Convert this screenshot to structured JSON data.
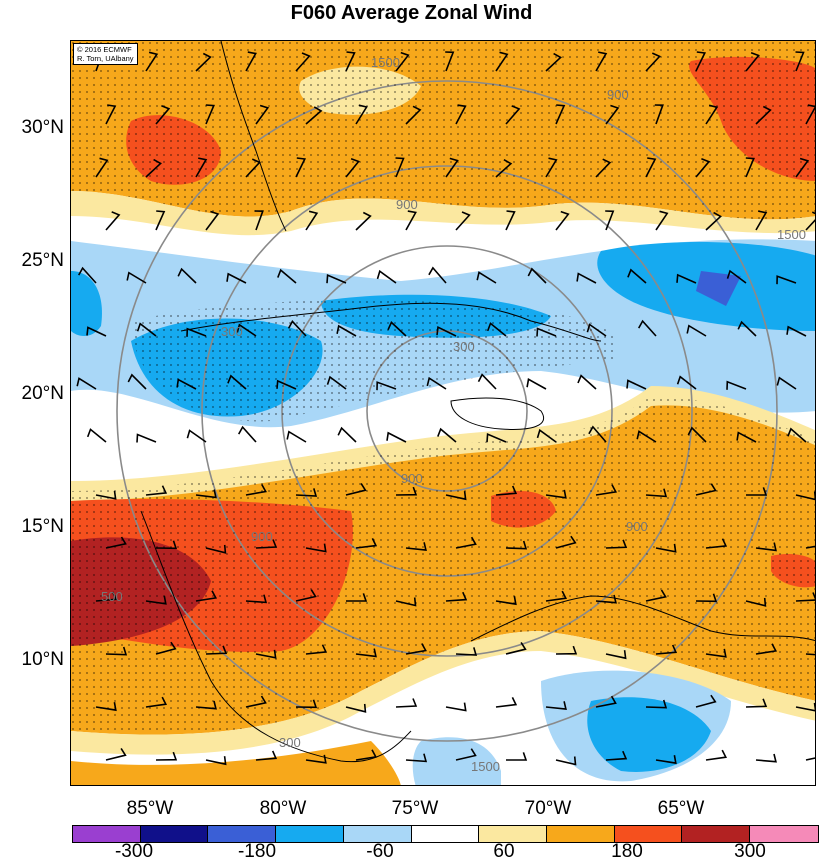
{
  "title": "F060 Average Zonal Wind",
  "credit": {
    "line1": "© 2016 ECMWF",
    "line2": "R. Torn, UAlbany"
  },
  "lat_labels": [
    "30°N",
    "25°N",
    "20°N",
    "15°N",
    "10°N"
  ],
  "lon_labels": [
    "85°W",
    "80°W",
    "75°W",
    "70°W",
    "65°W"
  ],
  "ring_labels": [
    "1500",
    "900",
    "900",
    "300",
    "300",
    "900",
    "1500",
    "300",
    "500",
    "900",
    "1500",
    "900"
  ],
  "colorbar": {
    "colors": [
      "#9a3fd0",
      "#10108a",
      "#3a5fd6",
      "#16aaf0",
      "#a9d7f7",
      "#ffffff",
      "#fbe8a0",
      "#f7a81b",
      "#f5501e",
      "#b22222",
      "#f58ab8"
    ],
    "labels": [
      "-300",
      "-180",
      "-60",
      "60",
      "180",
      "300"
    ]
  },
  "legend_colors": {
    "white": "#ffffff",
    "pale_yellow": "#fbe8a0",
    "orange": "#f7a81b",
    "red_orange": "#f5501e",
    "dark_red": "#b22222",
    "light_blue": "#a9d7f7",
    "mid_blue": "#16aaf0",
    "royal_blue": "#3a5fd6"
  }
}
